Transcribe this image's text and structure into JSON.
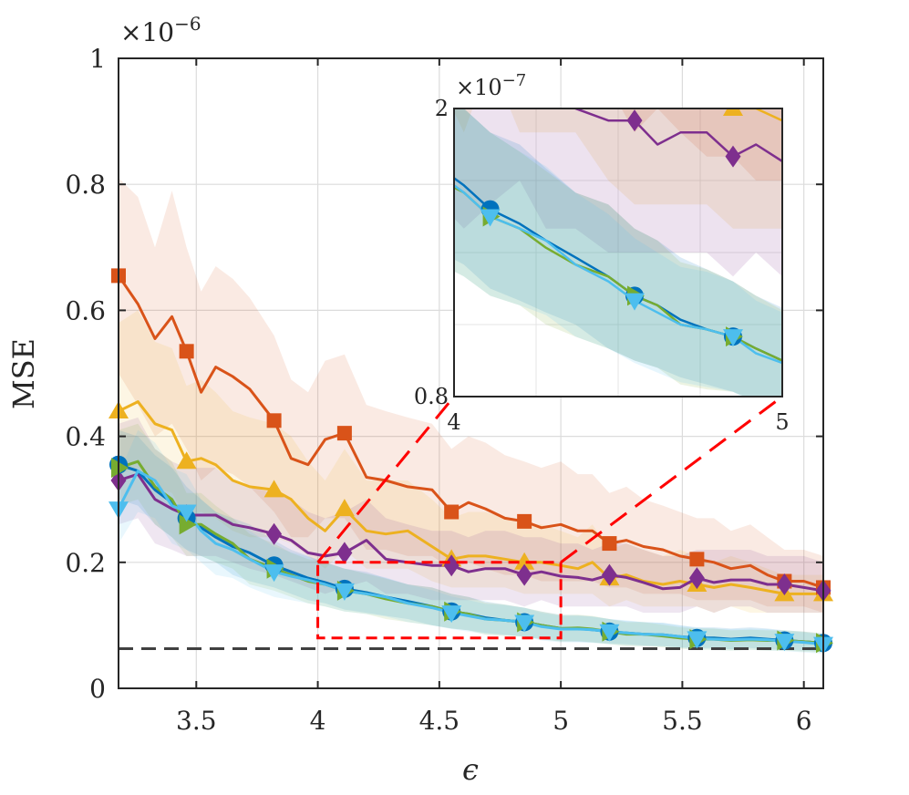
{
  "chart_data": {
    "type": "line",
    "title": "",
    "xlabel": "ϵ",
    "ylabel": "MSE",
    "y_exponent_label": "×10",
    "y_exponent": "−6",
    "xlim": [
      3.18,
      6.08
    ],
    "ylim": [
      0,
      1
    ],
    "x_ticks": [
      3.5,
      4,
      4.5,
      5,
      5.5,
      6
    ],
    "x_tick_labels": [
      "3.5",
      "4",
      "4.5",
      "5",
      "5.5",
      "6"
    ],
    "y_ticks": [
      0,
      0.2,
      0.4,
      0.6,
      0.8,
      1
    ],
    "y_tick_labels": [
      "0",
      "0.2",
      "0.4",
      "0.6",
      "0.8",
      "1"
    ],
    "grid": true,
    "x": [
      3.18,
      3.26,
      3.33,
      3.4,
      3.46,
      3.52,
      3.58,
      3.65,
      3.72,
      3.82,
      3.89,
      3.96,
      4.03,
      4.11,
      4.2,
      4.28,
      4.37,
      4.47,
      4.55,
      4.62,
      4.69,
      4.77,
      4.85,
      4.92,
      5.0,
      5.07,
      5.13,
      5.2,
      5.27,
      5.34,
      5.42,
      5.49,
      5.56,
      5.63,
      5.7,
      5.78,
      5.85,
      5.92,
      6.0,
      6.08
    ],
    "series": [
      {
        "name": "red-square",
        "color": "#D95319",
        "marker": "square",
        "values": [
          0.655,
          0.61,
          0.555,
          0.59,
          0.535,
          0.47,
          0.51,
          0.495,
          0.475,
          0.425,
          0.365,
          0.355,
          0.395,
          0.405,
          0.335,
          0.33,
          0.32,
          0.315,
          0.28,
          0.295,
          0.285,
          0.27,
          0.265,
          0.255,
          0.26,
          0.25,
          0.25,
          0.23,
          0.235,
          0.225,
          0.22,
          0.21,
          0.205,
          0.2,
          0.19,
          0.195,
          0.18,
          0.17,
          0.17,
          0.16
        ],
        "band_lo": [
          0.5,
          0.45,
          0.4,
          0.42,
          0.38,
          0.33,
          0.35,
          0.34,
          0.32,
          0.28,
          0.24,
          0.24,
          0.27,
          0.27,
          0.22,
          0.22,
          0.21,
          0.21,
          0.19,
          0.2,
          0.19,
          0.18,
          0.18,
          0.17,
          0.17,
          0.17,
          0.17,
          0.16,
          0.16,
          0.15,
          0.15,
          0.15,
          0.14,
          0.14,
          0.14,
          0.14,
          0.13,
          0.13,
          0.13,
          0.12
        ],
        "band_hi": [
          0.81,
          0.78,
          0.7,
          0.79,
          0.7,
          0.63,
          0.67,
          0.65,
          0.62,
          0.56,
          0.49,
          0.47,
          0.52,
          0.53,
          0.45,
          0.44,
          0.43,
          0.42,
          0.38,
          0.4,
          0.39,
          0.37,
          0.36,
          0.35,
          0.36,
          0.34,
          0.34,
          0.31,
          0.32,
          0.3,
          0.29,
          0.28,
          0.27,
          0.27,
          0.25,
          0.26,
          0.24,
          0.22,
          0.22,
          0.21
        ]
      },
      {
        "name": "yellow-triangle",
        "color": "#EDB120",
        "marker": "triangle-up",
        "values": [
          0.44,
          0.455,
          0.42,
          0.41,
          0.36,
          0.365,
          0.355,
          0.33,
          0.32,
          0.315,
          0.3,
          0.27,
          0.25,
          0.285,
          0.25,
          0.245,
          0.25,
          0.225,
          0.205,
          0.21,
          0.21,
          0.205,
          0.2,
          0.2,
          0.195,
          0.19,
          0.2,
          0.175,
          0.18,
          0.17,
          0.165,
          0.17,
          0.165,
          0.16,
          0.165,
          0.16,
          0.155,
          0.15,
          0.15,
          0.15
        ],
        "band_lo": [
          0.34,
          0.35,
          0.32,
          0.31,
          0.27,
          0.28,
          0.27,
          0.25,
          0.24,
          0.24,
          0.23,
          0.21,
          0.19,
          0.22,
          0.19,
          0.19,
          0.19,
          0.17,
          0.16,
          0.16,
          0.16,
          0.16,
          0.15,
          0.15,
          0.15,
          0.15,
          0.15,
          0.13,
          0.14,
          0.13,
          0.13,
          0.13,
          0.13,
          0.12,
          0.13,
          0.12,
          0.12,
          0.12,
          0.12,
          0.12
        ],
        "band_hi": [
          0.58,
          0.6,
          0.55,
          0.54,
          0.48,
          0.49,
          0.47,
          0.44,
          0.43,
          0.42,
          0.4,
          0.36,
          0.33,
          0.38,
          0.33,
          0.33,
          0.33,
          0.3,
          0.27,
          0.28,
          0.28,
          0.27,
          0.26,
          0.26,
          0.25,
          0.24,
          0.26,
          0.22,
          0.23,
          0.22,
          0.21,
          0.22,
          0.21,
          0.2,
          0.21,
          0.2,
          0.19,
          0.18,
          0.18,
          0.18
        ]
      },
      {
        "name": "purple-diamond",
        "color": "#7E2F8E",
        "marker": "diamond",
        "values": [
          0.33,
          0.34,
          0.3,
          0.285,
          0.275,
          0.275,
          0.275,
          0.26,
          0.255,
          0.245,
          0.235,
          0.215,
          0.21,
          0.215,
          0.235,
          0.205,
          0.2,
          0.195,
          0.195,
          0.185,
          0.19,
          0.19,
          0.18,
          0.185,
          0.178,
          0.176,
          0.172,
          0.18,
          0.176,
          0.168,
          0.158,
          0.16,
          0.175,
          0.168,
          0.172,
          0.172,
          0.165,
          0.165,
          0.16,
          0.155
        ],
        "band_lo": [
          0.26,
          0.27,
          0.23,
          0.22,
          0.21,
          0.21,
          0.21,
          0.2,
          0.19,
          0.18,
          0.17,
          0.16,
          0.15,
          0.16,
          0.17,
          0.15,
          0.15,
          0.14,
          0.14,
          0.14,
          0.14,
          0.14,
          0.13,
          0.14,
          0.13,
          0.13,
          0.13,
          0.13,
          0.13,
          0.12,
          0.12,
          0.12,
          0.13,
          0.12,
          0.13,
          0.13,
          0.12,
          0.12,
          0.12,
          0.12
        ],
        "band_hi": [
          0.42,
          0.43,
          0.38,
          0.36,
          0.35,
          0.35,
          0.35,
          0.33,
          0.32,
          0.31,
          0.3,
          0.28,
          0.27,
          0.28,
          0.3,
          0.27,
          0.26,
          0.25,
          0.25,
          0.24,
          0.25,
          0.25,
          0.24,
          0.24,
          0.23,
          0.23,
          0.22,
          0.23,
          0.23,
          0.22,
          0.21,
          0.21,
          0.22,
          0.22,
          0.22,
          0.22,
          0.21,
          0.21,
          0.21,
          0.2
        ]
      },
      {
        "name": "blue-circle",
        "color": "#0072BD",
        "marker": "circle",
        "values": [
          0.355,
          0.345,
          0.315,
          0.295,
          0.27,
          0.255,
          0.24,
          0.225,
          0.215,
          0.195,
          0.185,
          0.175,
          0.168,
          0.158,
          0.152,
          0.145,
          0.138,
          0.13,
          0.122,
          0.118,
          0.112,
          0.108,
          0.105,
          0.1,
          0.095,
          0.095,
          0.093,
          0.09,
          0.088,
          0.086,
          0.085,
          0.082,
          0.08,
          0.08,
          0.078,
          0.08,
          0.078,
          0.076,
          0.074,
          0.072
        ],
        "band_lo": [
          0.3,
          0.29,
          0.26,
          0.24,
          0.22,
          0.21,
          0.2,
          0.18,
          0.17,
          0.16,
          0.15,
          0.14,
          0.135,
          0.125,
          0.12,
          0.115,
          0.11,
          0.1,
          0.095,
          0.092,
          0.088,
          0.085,
          0.082,
          0.078,
          0.075,
          0.074,
          0.073,
          0.071,
          0.07,
          0.068,
          0.067,
          0.065,
          0.064,
          0.064,
          0.062,
          0.064,
          0.062,
          0.061,
          0.06,
          0.058
        ],
        "band_hi": [
          0.41,
          0.4,
          0.37,
          0.35,
          0.32,
          0.3,
          0.28,
          0.27,
          0.26,
          0.235,
          0.22,
          0.21,
          0.2,
          0.19,
          0.185,
          0.175,
          0.165,
          0.16,
          0.15,
          0.145,
          0.138,
          0.133,
          0.128,
          0.122,
          0.117,
          0.116,
          0.114,
          0.11,
          0.107,
          0.105,
          0.104,
          0.1,
          0.097,
          0.097,
          0.095,
          0.097,
          0.095,
          0.092,
          0.09,
          0.087
        ]
      },
      {
        "name": "green-triangle",
        "color": "#77AC30",
        "marker": "triangle-right",
        "values": [
          0.35,
          0.36,
          0.32,
          0.3,
          0.26,
          0.26,
          0.245,
          0.23,
          0.205,
          0.19,
          0.18,
          0.17,
          0.165,
          0.155,
          0.15,
          0.142,
          0.135,
          0.13,
          0.122,
          0.118,
          0.11,
          0.108,
          0.105,
          0.1,
          0.095,
          0.096,
          0.094,
          0.09,
          0.086,
          0.086,
          0.083,
          0.08,
          0.078,
          0.078,
          0.076,
          0.077,
          0.076,
          0.076,
          0.074,
          0.072
        ],
        "band_lo": [
          0.29,
          0.3,
          0.26,
          0.24,
          0.21,
          0.21,
          0.2,
          0.19,
          0.165,
          0.155,
          0.145,
          0.135,
          0.13,
          0.122,
          0.118,
          0.11,
          0.105,
          0.1,
          0.095,
          0.092,
          0.085,
          0.083,
          0.082,
          0.078,
          0.074,
          0.075,
          0.073,
          0.07,
          0.067,
          0.067,
          0.065,
          0.063,
          0.061,
          0.061,
          0.06,
          0.061,
          0.06,
          0.06,
          0.058,
          0.057
        ],
        "band_hi": [
          0.41,
          0.42,
          0.38,
          0.36,
          0.31,
          0.31,
          0.29,
          0.27,
          0.245,
          0.23,
          0.215,
          0.205,
          0.2,
          0.19,
          0.182,
          0.174,
          0.165,
          0.16,
          0.15,
          0.145,
          0.136,
          0.133,
          0.128,
          0.122,
          0.116,
          0.117,
          0.115,
          0.11,
          0.105,
          0.105,
          0.101,
          0.097,
          0.095,
          0.095,
          0.092,
          0.093,
          0.092,
          0.092,
          0.09,
          0.087
        ]
      },
      {
        "name": "cyan-triangle-down",
        "color": "#4DBEEE",
        "marker": "triangle-down",
        "values": [
          0.285,
          0.345,
          0.33,
          0.29,
          0.28,
          0.25,
          0.23,
          0.22,
          0.205,
          0.185,
          0.178,
          0.172,
          0.165,
          0.155,
          0.15,
          0.145,
          0.135,
          0.128,
          0.12,
          0.115,
          0.11,
          0.108,
          0.105,
          0.098,
          0.094,
          0.094,
          0.093,
          0.09,
          0.088,
          0.086,
          0.085,
          0.082,
          0.079,
          0.078,
          0.077,
          0.078,
          0.077,
          0.075,
          0.073,
          0.07
        ],
        "band_lo": [
          0.23,
          0.28,
          0.27,
          0.23,
          0.22,
          0.2,
          0.18,
          0.175,
          0.16,
          0.145,
          0.14,
          0.135,
          0.13,
          0.122,
          0.118,
          0.114,
          0.105,
          0.1,
          0.094,
          0.09,
          0.086,
          0.084,
          0.082,
          0.076,
          0.073,
          0.073,
          0.072,
          0.07,
          0.068,
          0.067,
          0.066,
          0.064,
          0.062,
          0.061,
          0.06,
          0.061,
          0.06,
          0.059,
          0.057,
          0.055
        ],
        "band_hi": [
          0.34,
          0.41,
          0.39,
          0.35,
          0.34,
          0.3,
          0.28,
          0.265,
          0.25,
          0.225,
          0.216,
          0.209,
          0.2,
          0.19,
          0.182,
          0.176,
          0.165,
          0.156,
          0.146,
          0.14,
          0.134,
          0.132,
          0.128,
          0.12,
          0.115,
          0.115,
          0.114,
          0.11,
          0.108,
          0.105,
          0.104,
          0.1,
          0.096,
          0.095,
          0.094,
          0.095,
          0.094,
          0.091,
          0.089,
          0.085
        ]
      }
    ],
    "marker_indices": [
      0,
      4,
      9,
      13,
      18,
      22,
      27,
      32,
      37,
      39
    ],
    "reference_line": {
      "value": 0.063,
      "style": "dashed",
      "color": "#404040"
    },
    "zoom_box": {
      "x0": 4,
      "x1": 5,
      "y0": 0.08,
      "y1": 0.2,
      "color": "#FF0000"
    },
    "inset": {
      "xlim": [
        4,
        5
      ],
      "ylim": [
        0.8,
        2
      ],
      "x_tick_labels": [
        "4",
        "5"
      ],
      "y_tick_labels": [
        "0.8",
        "2"
      ],
      "y_exponent_label": "×10",
      "y_exponent": "−7"
    }
  }
}
